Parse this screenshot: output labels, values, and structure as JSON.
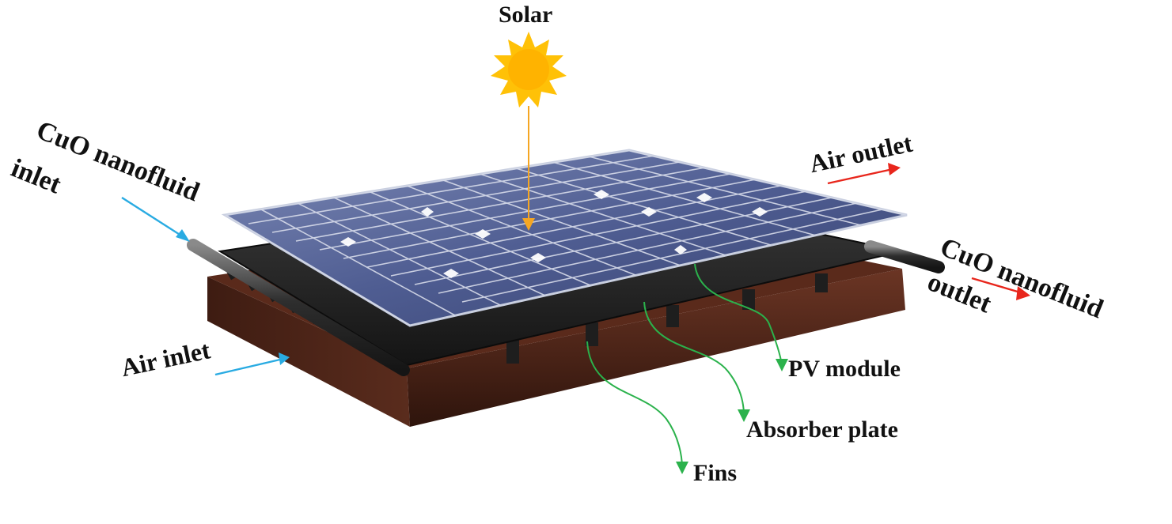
{
  "labels": {
    "solar": "Solar",
    "cuo_inlet_line1": "CuO nanofluid",
    "cuo_inlet_line2": "inlet",
    "air_outlet": "Air outlet",
    "cuo_outlet_line1": "CuO nanofluid",
    "cuo_outlet_line2": "outlet",
    "air_inlet": "Air inlet",
    "pv_module": "PV module",
    "absorber_plate": "Absorber plate",
    "fins": "Fins"
  },
  "colors": {
    "sun": "#ffc107",
    "solar_ray": "#f5a623",
    "inlet_arrow": "#29abe2",
    "outlet_arrow": "#e8261c",
    "pointer_arrow": "#2bb24c",
    "pv_panel": "#4a5a8c",
    "absorber": "#2a2a2a",
    "base_frame": "#4a2418",
    "pipe": "#3a3a3a"
  }
}
